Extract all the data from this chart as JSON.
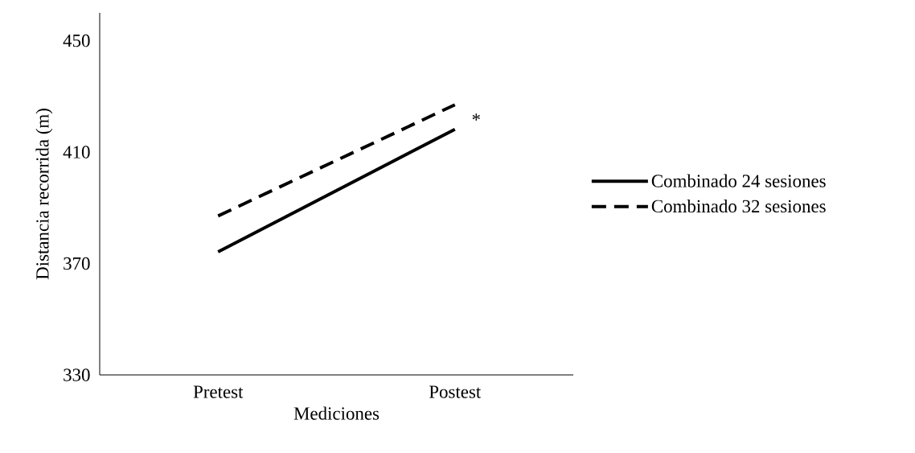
{
  "chart_data": {
    "type": "line",
    "xlabel": "Mediciones",
    "ylabel": "Distancia  recorrida  (m)",
    "categories": [
      "Pretest",
      "Postest"
    ],
    "series": [
      {
        "name": "Combinado 24 sesiones",
        "color": "#000000",
        "line_style": "solid",
        "values": [
          374.2,
          418.2
        ]
      },
      {
        "name": "Combinado 32 sesiones",
        "color": "#000000",
        "line_style": "dashed",
        "values": [
          387.1,
          427.0
        ]
      }
    ],
    "ylim": [
      330,
      460
    ],
    "yticks": [
      330,
      370,
      410,
      450
    ],
    "grid": false,
    "legend": "right",
    "marker": "none",
    "annotations": [
      "*"
    ]
  }
}
